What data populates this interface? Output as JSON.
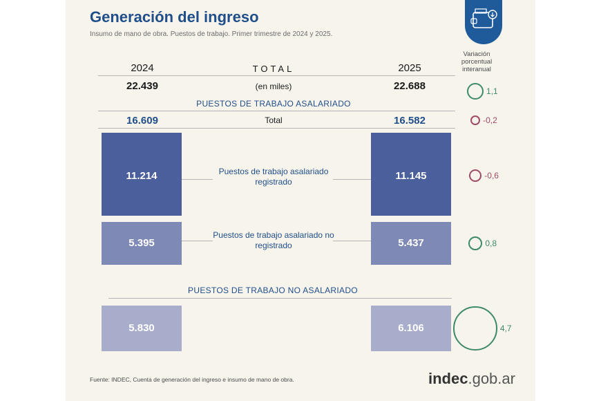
{
  "header": {
    "title": "Generación del ingreso",
    "subtitle": "Insumo de mano de obra. Puestos de trabajo. Primer trimestre de 2024 y 2025."
  },
  "variation_header": "Variación porcentual interanual",
  "colors": {
    "title_blue": "#1f4e8a",
    "registrado": "#4a5f9c",
    "no_registrado": "#7f89b5",
    "no_asalariado": "#a8adcc",
    "positive_ring": "#3d8a68",
    "negative_ring": "#a04a68"
  },
  "chart_data": {
    "type": "table",
    "unit": "(en miles)",
    "years": [
      "2024",
      "2025"
    ],
    "total": {
      "label": "TOTAL",
      "values": [
        22.439,
        22.688
      ],
      "display": [
        "22.439",
        "22.688"
      ],
      "variation": 1.1,
      "variation_display": "1,1"
    },
    "asalariado": {
      "section_label": "PUESTOS DE TRABAJO ASALARIADO",
      "total_label": "Total",
      "values": [
        16.609,
        16.582
      ],
      "display": [
        "16.609",
        "16.582"
      ],
      "variation": -0.2,
      "variation_display": "-0,2",
      "categories": [
        {
          "label": "Puestos de trabajo asalariado registrado",
          "values": [
            11.214,
            11.145
          ],
          "display": [
            "11.214",
            "11.145"
          ],
          "variation": -0.6,
          "variation_display": "-0,6"
        },
        {
          "label": "Puestos de trabajo asalariado no registrado",
          "values": [
            5.395,
            5.437
          ],
          "display": [
            "5.395",
            "5.437"
          ],
          "variation": 0.8,
          "variation_display": "0,8"
        }
      ]
    },
    "no_asalariado": {
      "section_label": "PUESTOS DE TRABAJO NO ASALARIADO",
      "values": [
        5.83,
        6.106
      ],
      "display": [
        "5.830",
        "6.106"
      ],
      "variation": 4.7,
      "variation_display": "4,7"
    }
  },
  "footer": {
    "source": "Fuente: INDEC, Cuenta de generación del ingreso e insumo de mano de obra.",
    "brand_bold": "indec",
    "brand_rest": ".gob.ar"
  }
}
